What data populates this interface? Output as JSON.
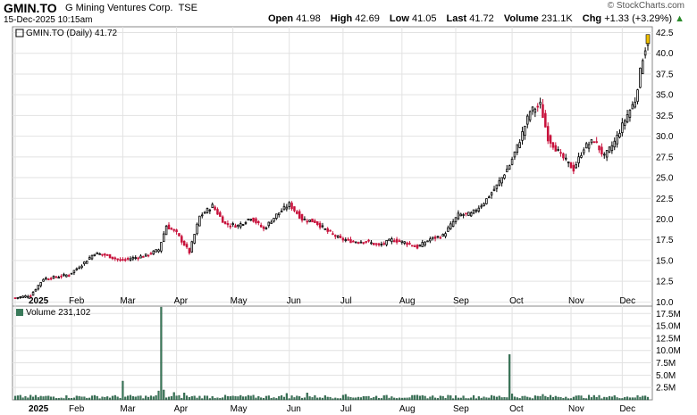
{
  "header": {
    "symbol": "GMIN.TO",
    "company": "G Mining Ventures Corp.",
    "exchange": "TSE",
    "datetime": "15-Dec-2025 10:15am",
    "watermark": "© StockCharts.com",
    "open_label": "Open",
    "open": "41.98",
    "high_label": "High",
    "high": "42.69",
    "low_label": "Low",
    "low": "41.05",
    "last_label": "Last",
    "last": "41.72",
    "volume_label": "Volume",
    "volume": "231.1K",
    "chg_label": "Chg",
    "chg": "+1.33 (+3.29%)"
  },
  "colors": {
    "up": "#000000",
    "down": "#c8123c",
    "volume": "#3a7a5a",
    "grid": "#e2e2e2",
    "last_marker": "#f0c000"
  },
  "chart_data": [
    {
      "type": "candlestick",
      "legend": "GMIN.TO (Daily) 41.72",
      "ylim": [
        9.5,
        43.2
      ],
      "y_ticks": [
        "10.0",
        "12.5",
        "15.0",
        "17.5",
        "20.0",
        "22.5",
        "25.0",
        "27.5",
        "30.0",
        "32.5",
        "35.0",
        "37.5",
        "40.0",
        "42.5"
      ],
      "x_ticks": [
        "2025",
        "Feb",
        "Mar",
        "Apr",
        "May",
        "Jun",
        "Jul",
        "Aug",
        "Sep",
        "Oct",
        "Nov",
        "Dec"
      ],
      "close_anchors": [
        [
          "2025-01-02",
          10.5
        ],
        [
          "2025-01-10",
          10.8
        ],
        [
          "2025-01-17",
          12.8
        ],
        [
          "2025-01-24",
          13.0
        ],
        [
          "2025-01-31",
          13.3
        ],
        [
          "2025-02-07",
          14.5
        ],
        [
          "2025-02-14",
          15.9
        ],
        [
          "2025-02-21",
          15.6
        ],
        [
          "2025-02-28",
          15.0
        ],
        [
          "2025-03-07",
          15.3
        ],
        [
          "2025-03-14",
          15.6
        ],
        [
          "2025-03-21",
          16.3
        ],
        [
          "2025-03-26",
          19.2
        ],
        [
          "2025-04-01",
          18.3
        ],
        [
          "2025-04-08",
          16.0
        ],
        [
          "2025-04-14",
          20.3
        ],
        [
          "2025-04-21",
          21.6
        ],
        [
          "2025-04-28",
          19.4
        ],
        [
          "2025-05-05",
          19.2
        ],
        [
          "2025-05-12",
          20.2
        ],
        [
          "2025-05-19",
          18.8
        ],
        [
          "2025-05-26",
          20.5
        ],
        [
          "2025-06-02",
          21.8
        ],
        [
          "2025-06-09",
          20.0
        ],
        [
          "2025-06-16",
          19.7
        ],
        [
          "2025-06-23",
          18.5
        ],
        [
          "2025-06-30",
          17.6
        ],
        [
          "2025-07-07",
          17.3
        ],
        [
          "2025-07-14",
          17.3
        ],
        [
          "2025-07-21",
          16.8
        ],
        [
          "2025-07-28",
          17.5
        ],
        [
          "2025-08-04",
          17.2
        ],
        [
          "2025-08-11",
          16.6
        ],
        [
          "2025-08-18",
          17.6
        ],
        [
          "2025-08-25",
          18.0
        ],
        [
          "2025-09-02",
          20.5
        ],
        [
          "2025-09-09",
          20.6
        ],
        [
          "2025-09-16",
          22.0
        ],
        [
          "2025-09-23",
          24.0
        ],
        [
          "2025-09-30",
          26.5
        ],
        [
          "2025-10-06",
          29.5
        ],
        [
          "2025-10-10",
          33.0
        ],
        [
          "2025-10-16",
          33.8
        ],
        [
          "2025-10-21",
          29.8
        ],
        [
          "2025-10-28",
          27.7
        ],
        [
          "2025-11-04",
          26.0
        ],
        [
          "2025-11-10",
          28.6
        ],
        [
          "2025-11-14",
          29.5
        ],
        [
          "2025-11-20",
          27.5
        ],
        [
          "2025-11-26",
          29.3
        ],
        [
          "2025-12-03",
          32.6
        ],
        [
          "2025-12-08",
          34.3
        ],
        [
          "2025-12-11",
          39.5
        ],
        [
          "2025-12-15",
          41.72
        ]
      ]
    },
    {
      "type": "bar",
      "legend": "Volume 231,102",
      "ylim": [
        0,
        19000000
      ],
      "y_ticks": [
        "2.5M",
        "5.0M",
        "7.5M",
        "10.0M",
        "12.5M",
        "15.0M",
        "17.5M"
      ],
      "x_ticks": [
        "2025",
        "Feb",
        "Mar",
        "Apr",
        "May",
        "Jun",
        "Jul",
        "Aug",
        "Sep",
        "Oct",
        "Nov",
        "Dec"
      ],
      "volume_spikes": [
        [
          "2025-03-03",
          3800000
        ],
        [
          "2025-03-24",
          18800000
        ],
        [
          "2025-03-21",
          1800000
        ],
        [
          "2025-03-25",
          2000000
        ],
        [
          "2025-03-31",
          1500000
        ],
        [
          "2025-04-04",
          1400000
        ],
        [
          "2025-09-30",
          9200000
        ],
        [
          "2025-10-01",
          1200000
        ],
        [
          "2025-05-30",
          1300000
        ],
        [
          "2025-06-11",
          1400000
        ],
        [
          "2025-07-02",
          1100000
        ],
        [
          "2025-10-17",
          1100000
        ],
        [
          "2025-12-12",
          800000
        ]
      ]
    }
  ]
}
